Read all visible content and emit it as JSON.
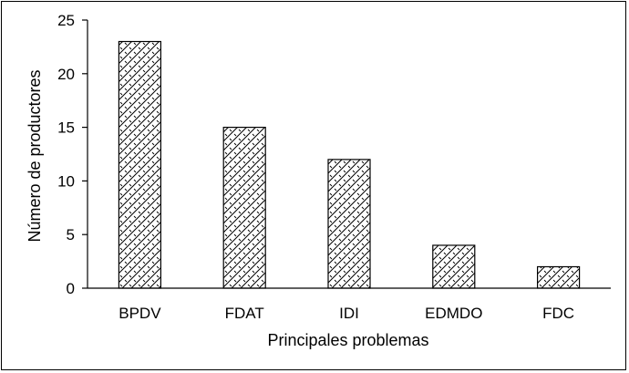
{
  "chart_data": {
    "type": "bar",
    "title": "",
    "xlabel": "Principales problemas",
    "ylabel": "Número de productores",
    "categories": [
      "BPDV",
      "FDAT",
      "IDI",
      "EDMDO",
      "FDC"
    ],
    "values": [
      23,
      15,
      12,
      4,
      2
    ],
    "ylim": [
      0,
      25
    ],
    "yticks": [
      "0",
      "5",
      "10",
      "15",
      "20",
      "25"
    ],
    "grid": false,
    "legend": "none",
    "bar_fill": "diagonal-crosshatch",
    "colors": {
      "bar_stroke": "#000000",
      "bar_background": "#ffffff",
      "axis": "#000000"
    }
  }
}
